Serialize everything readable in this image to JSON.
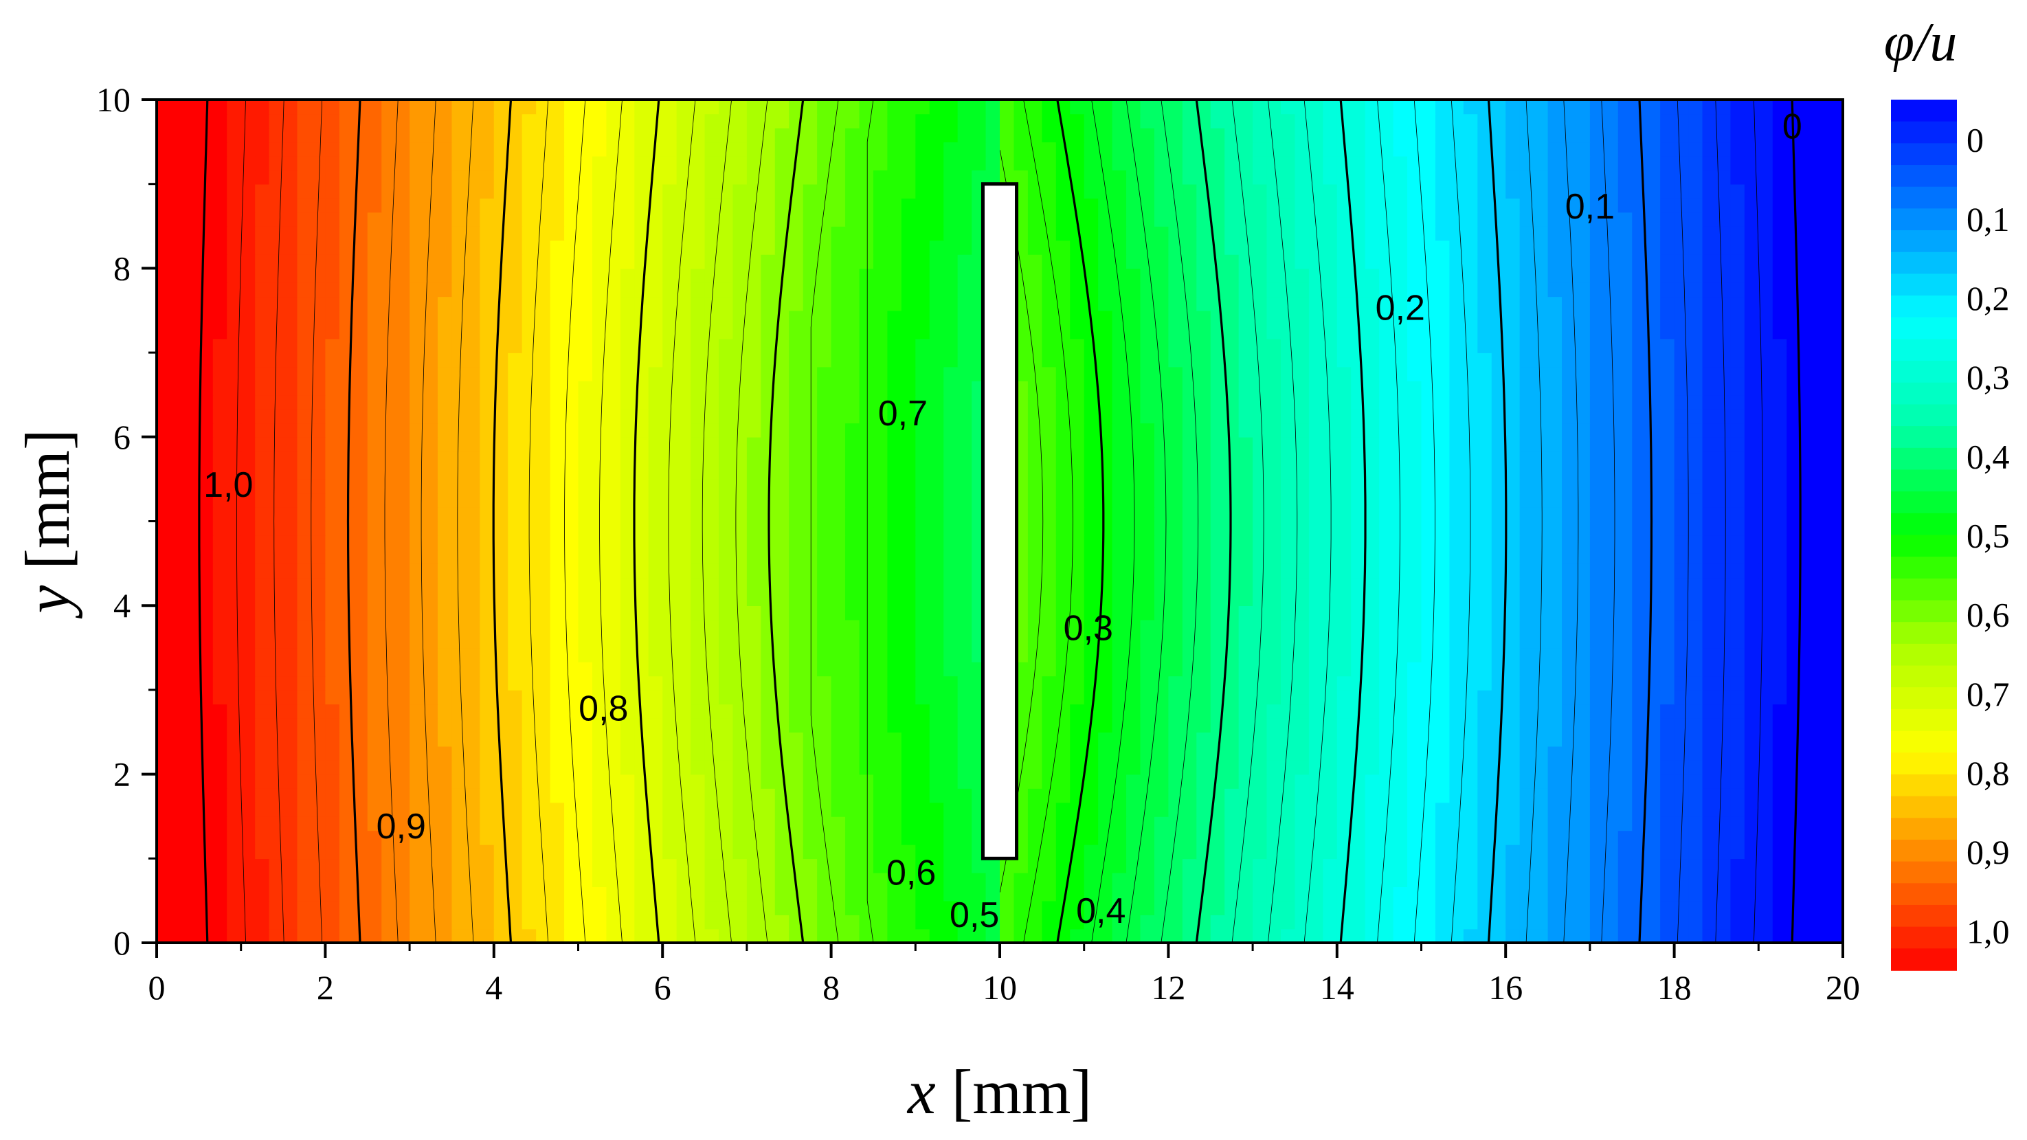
{
  "chart_data": {
    "type": "heatmap",
    "subtype": "filled-contour",
    "title": "",
    "xlabel_var": "x",
    "xlabel_unit": "[mm]",
    "ylabel_var": "y",
    "ylabel_unit": "[mm]",
    "xlim": [
      0,
      20
    ],
    "ylim": [
      0,
      10
    ],
    "x_ticks": [
      "0",
      "2",
      "4",
      "6",
      "8",
      "10",
      "12",
      "14",
      "16",
      "18",
      "20"
    ],
    "y_ticks": [
      "0",
      "2",
      "4",
      "6",
      "8",
      "10"
    ],
    "colorbar": {
      "title": "φ/u",
      "range": [
        0,
        1
      ],
      "reversed": true,
      "labels": [
        "0",
        "0,1",
        "0,2",
        "0,3",
        "0,4",
        "0,5",
        "0,6",
        "0,7",
        "0,8",
        "0,9",
        "1,0"
      ],
      "colormap": [
        "#ff0000",
        "#ff8000",
        "#ffff00",
        "#aaff00",
        "#00ff00",
        "#00ffaa",
        "#00ffff",
        "#0080ff",
        "#0000ff"
      ]
    },
    "obstacle": {
      "x": [
        9.8,
        10.2
      ],
      "y": [
        1.0,
        9.0
      ],
      "color": "#ffffff"
    },
    "contour_levels": [
      0.0,
      0.1,
      0.2,
      0.3,
      0.4,
      0.5,
      0.6,
      0.7,
      0.8,
      0.9,
      1.0
    ],
    "contour_labels": [
      {
        "text": "1,0",
        "x": 0.85,
        "y": 5.4
      },
      {
        "text": "0,9",
        "x": 2.9,
        "y": 1.35
      },
      {
        "text": "0,8",
        "x": 5.3,
        "y": 2.75
      },
      {
        "text": "0,7",
        "x": 8.85,
        "y": 6.25
      },
      {
        "text": "0,6",
        "x": 8.95,
        "y": 0.8
      },
      {
        "text": "0,5",
        "x": 9.7,
        "y": 0.3
      },
      {
        "text": "0,4",
        "x": 11.2,
        "y": 0.35
      },
      {
        "text": "0,3",
        "x": 11.05,
        "y": 3.7
      },
      {
        "text": "0,2",
        "x": 14.75,
        "y": 7.5
      },
      {
        "text": "0,1",
        "x": 17.0,
        "y": 8.7
      },
      {
        "text": "0",
        "x": 19.4,
        "y": 9.65
      }
    ]
  }
}
